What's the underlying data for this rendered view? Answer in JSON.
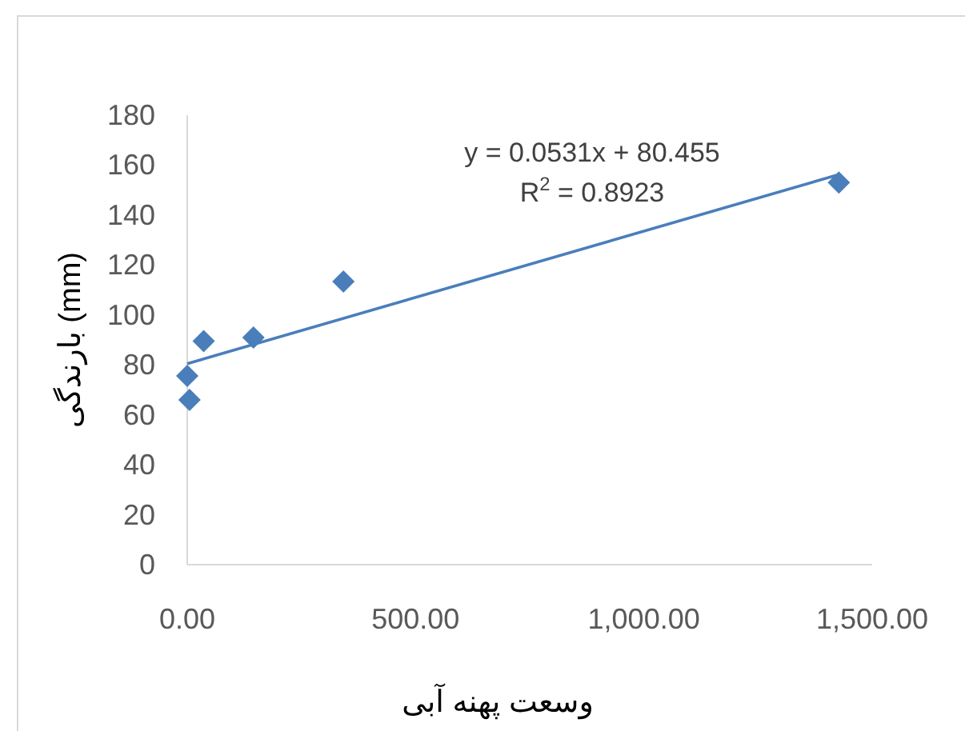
{
  "chart_data": {
    "type": "scatter",
    "xlabel": "وسعت پهنه آبی",
    "ylabel": "بارندگی (mm)",
    "xlim": [
      0,
      1500
    ],
    "ylim": [
      0,
      180
    ],
    "xticks": [
      {
        "value": 0,
        "label": "0.00"
      },
      {
        "value": 500,
        "label": "500.00"
      },
      {
        "value": 1000,
        "label": "1,000.00"
      },
      {
        "value": 1500,
        "label": "1,500.00"
      }
    ],
    "yticks": [
      0,
      20,
      40,
      60,
      80,
      100,
      120,
      140,
      160,
      180
    ],
    "grid": false,
    "marker": "diamond",
    "series": [
      {
        "type": "scatter",
        "color": "#4a7ebb",
        "x": [
          0,
          5,
          36,
          145,
          342,
          1427
        ],
        "values": [
          75.6,
          66,
          89.5,
          91,
          113.4,
          153
        ]
      },
      {
        "type": "line",
        "color": "#4a7ebb",
        "marker": "none",
        "line_style": "solid",
        "x": [
          0,
          1427
        ],
        "values": [
          80.5,
          156.2
        ]
      }
    ],
    "annotations": [
      "y = 0.0531x + 80.455",
      "R$^{2}$ = 0.8923"
    ]
  }
}
